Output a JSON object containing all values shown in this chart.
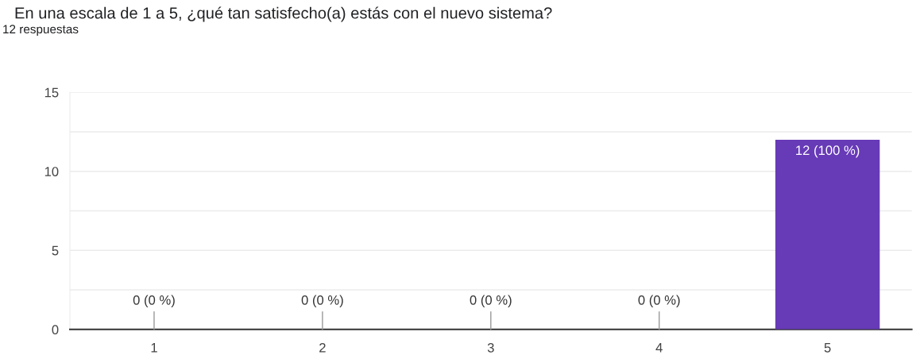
{
  "chart_data": {
    "type": "bar",
    "title": "En una escala de 1 a 5, ¿qué tan satisfecho(a) estás con el nuevo sistema?",
    "subtitle": "12 respuestas",
    "categories": [
      "1",
      "2",
      "3",
      "4",
      "5"
    ],
    "values": [
      0,
      0,
      0,
      0,
      12
    ],
    "value_labels": [
      "0 (0 %)",
      "0 (0 %)",
      "0 (0 %)",
      "0 (0 %)",
      "12 (100 %)"
    ],
    "color": "#673ab7",
    "ylim": [
      0,
      15
    ],
    "yticks": [
      0,
      {
        "value": 2.5,
        "label": null
      },
      5,
      {
        "value": 7.5,
        "label": null
      },
      10,
      {
        "value": 12.5,
        "label": null
      },
      15
    ],
    "grid": "y"
  }
}
